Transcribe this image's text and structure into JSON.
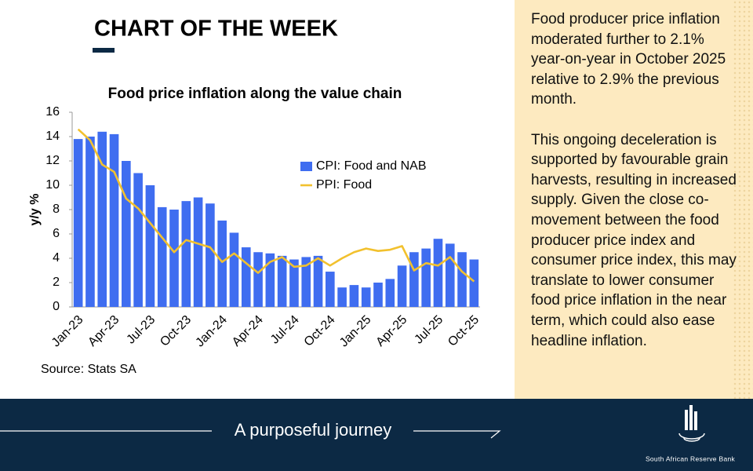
{
  "header": {
    "title": "CHART OF THE WEEK"
  },
  "chart_data": {
    "type": "bar",
    "title": "Food price inflation along the value chain",
    "y_label": "y/y %",
    "source": "Source: Stats SA",
    "categories": [
      "Jan-23",
      null,
      null,
      "Apr-23",
      null,
      null,
      "Jul-23",
      null,
      null,
      "Oct-23",
      null,
      null,
      "Jan-24",
      null,
      null,
      "Apr-24",
      null,
      null,
      "Jul-24",
      null,
      null,
      "Oct-24",
      null,
      null,
      "Jan-25",
      null,
      null,
      "Apr-25",
      null,
      null,
      "Jul-25",
      null,
      null,
      "Oct-25"
    ],
    "series": [
      {
        "name": "CPI: Food and NAB",
        "type": "bar",
        "color": "#3f6df0",
        "values": [
          13.8,
          14.0,
          14.4,
          14.2,
          12.0,
          11.0,
          10.0,
          8.2,
          8.0,
          8.7,
          9.0,
          8.5,
          7.1,
          6.1,
          4.9,
          4.5,
          4.4,
          4.2,
          3.9,
          4.1,
          4.2,
          2.9,
          1.6,
          1.8,
          1.6,
          2.0,
          2.3,
          3.4,
          4.5,
          4.8,
          5.6,
          5.2,
          4.5,
          3.9
        ]
      },
      {
        "name": "PPI: Food",
        "type": "line",
        "color": "#f2c12e",
        "values": [
          14.6,
          13.7,
          11.7,
          11.1,
          8.9,
          8.1,
          6.9,
          5.7,
          4.5,
          5.5,
          5.2,
          4.9,
          3.7,
          4.4,
          3.6,
          2.8,
          3.7,
          4.1,
          3.3,
          3.4,
          4.0,
          3.4,
          4.0,
          4.5,
          4.8,
          4.6,
          4.7,
          5.0,
          3.0,
          3.6,
          3.4,
          4.1,
          2.9,
          2.1
        ]
      }
    ],
    "ylim": [
      0,
      16
    ],
    "yticks": [
      0,
      2,
      4,
      6,
      8,
      10,
      12,
      14,
      16
    ],
    "legend": "upper right"
  },
  "commentary": {
    "paragraphs": [
      "Food producer price inflation moderated further to 2.1% year-on-year in October 2025 relative to 2.9% the previous month.",
      "This ongoing deceleration is supported by favourable grain harvests, resulting in increased supply. Given the close co-movement between the food producer price index and consumer price index, this may translate to lower consumer food price inflation in the near term, which could also ease headline inflation."
    ]
  },
  "footer": {
    "tagline": "A purposeful journey",
    "logo_text": "South African Reserve Bank"
  }
}
